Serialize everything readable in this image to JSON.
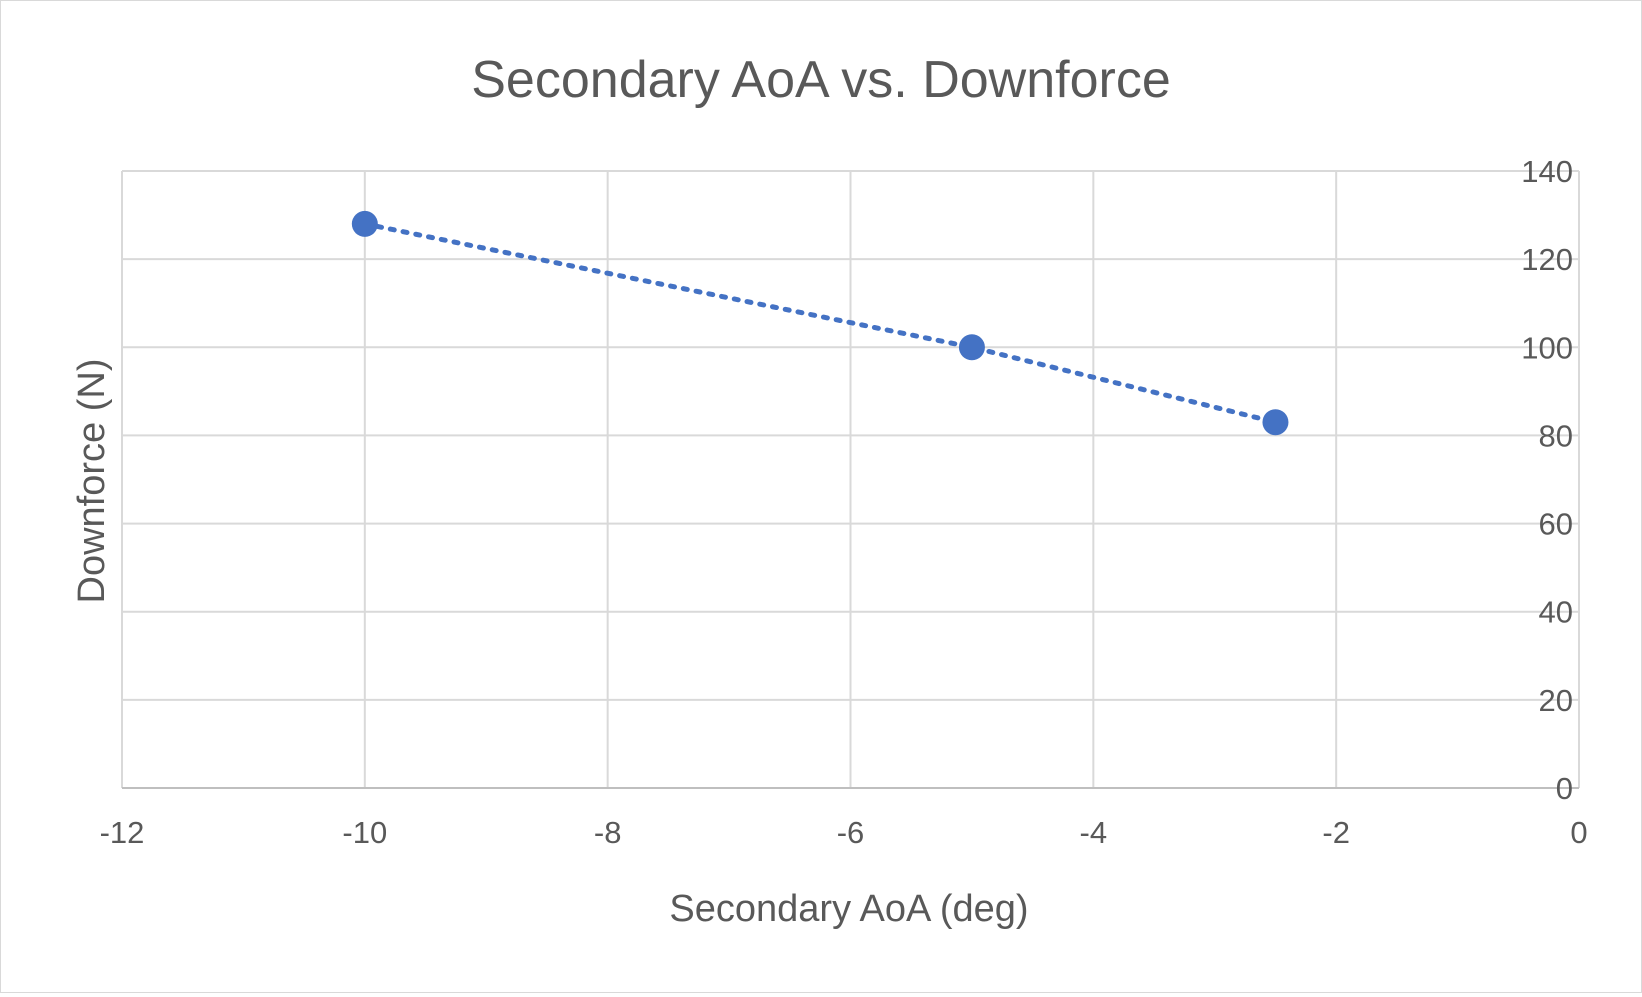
{
  "chart_data": {
    "type": "scatter",
    "title": "Secondary AoA vs. Downforce",
    "xlabel": "Secondary AoA (deg)",
    "ylabel": "Downforce (N)",
    "xlim": [
      -12,
      0
    ],
    "ylim": [
      0,
      140
    ],
    "x_ticks": [
      "-12",
      "-10",
      "-8",
      "-6",
      "-4",
      "-2",
      "0"
    ],
    "y_ticks": [
      "0",
      "20",
      "40",
      "60",
      "80",
      "100",
      "120",
      "140"
    ],
    "grid": true,
    "y_axis_side": "right",
    "line_style": "dotted",
    "color": "#4472C4",
    "series": [
      {
        "x": [
          -10,
          -5,
          -2.5
        ],
        "y": [
          128,
          100,
          83
        ]
      }
    ]
  }
}
